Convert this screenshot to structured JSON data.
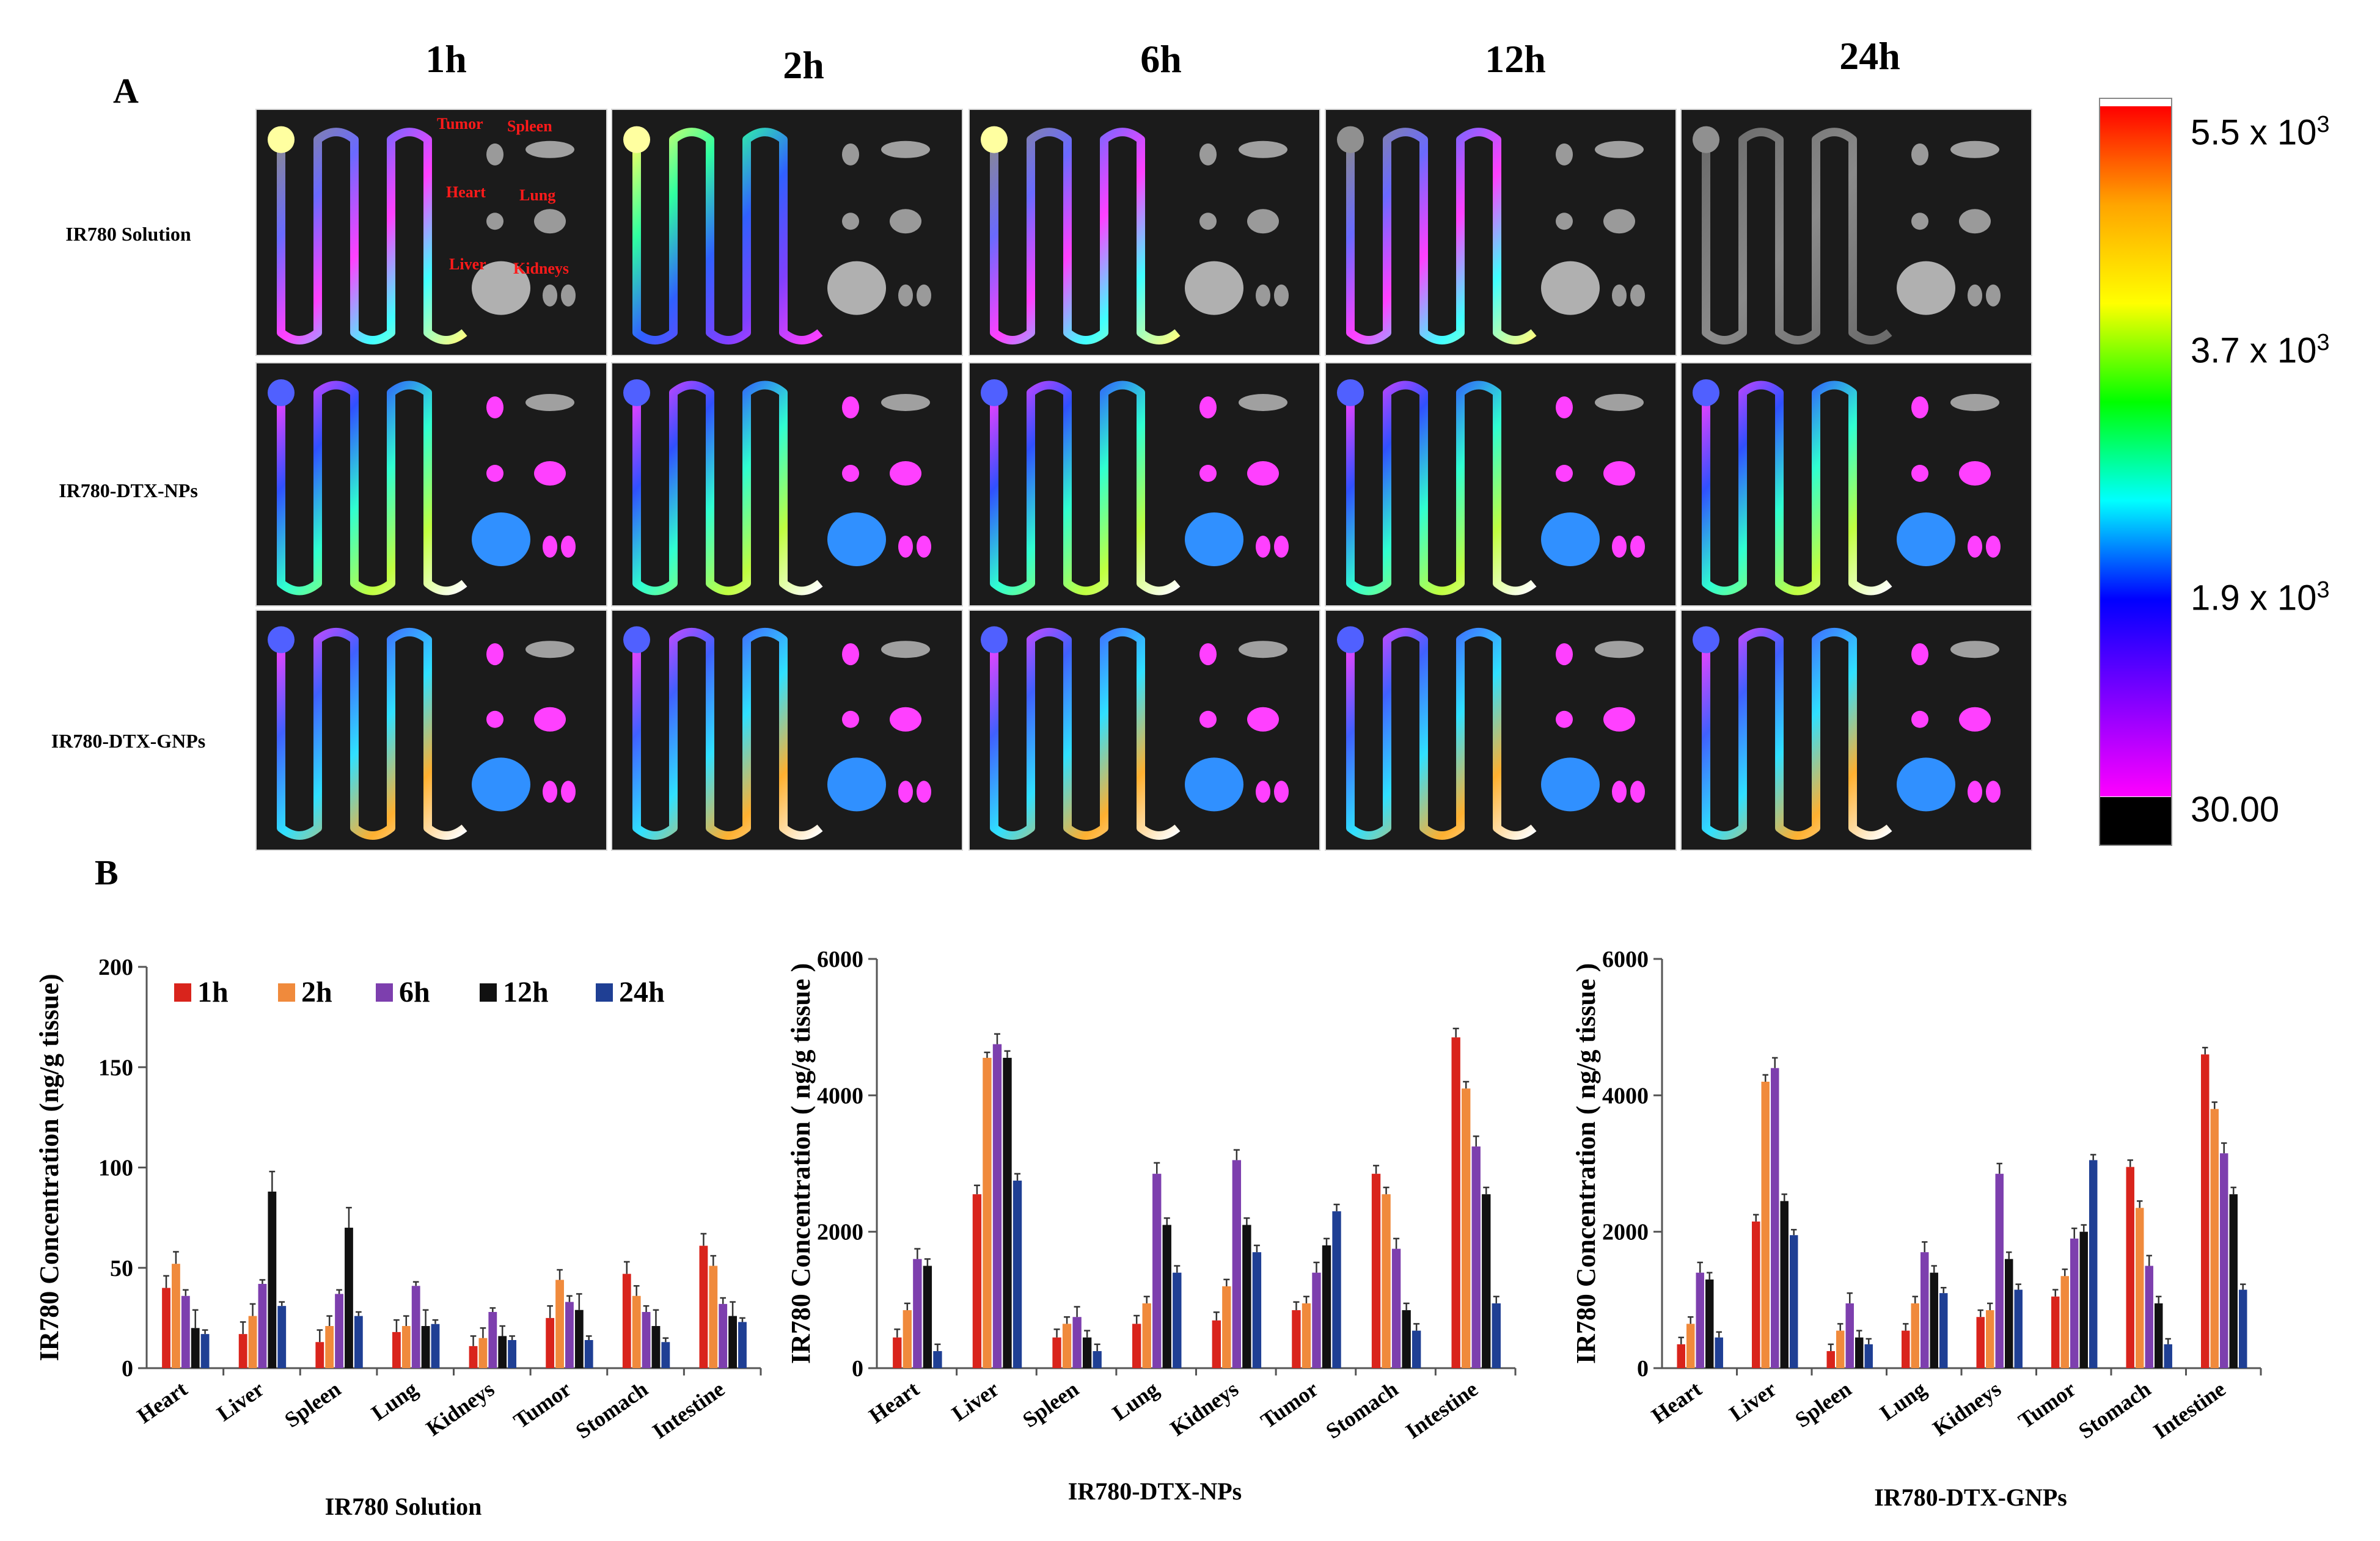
{
  "panel_a_label": "A",
  "panel_b_label": "B",
  "time_points": [
    "1h",
    "2h",
    "6h",
    "12h",
    "24h"
  ],
  "row_labels": [
    "IR780  Solution",
    "IR780-DTX-NPs",
    "IR780-DTX-GNPs"
  ],
  "organ_labels": {
    "tumor": "Tumor",
    "spleen": "Spleen",
    "heart": "Heart",
    "lung": "Lung",
    "liver": "Liver",
    "kidneys": "Kidneys"
  },
  "colorbar": {
    "labels": [
      "5.5 x 10",
      "3.7 x 10",
      "1.9 x 10"
    ],
    "exponent": "3",
    "min_label": "30.00",
    "colors": [
      "#ff0000",
      "#ffa500",
      "#ffff00",
      "#00ff00",
      "#00ffff",
      "#0000ff",
      "#8000ff",
      "#ff00ff"
    ]
  },
  "series_colors": {
    "1h": "#d9241c",
    "2h": "#f08a3c",
    "6h": "#7d3fae",
    "12h": "#111111",
    "24h": "#1f3f94"
  },
  "chart_data": [
    {
      "type": "bar",
      "title": "IR780  Solution",
      "xlabel": "",
      "ylabel": "IR780 Concentration (ng/g tissue)",
      "ylim": [
        0,
        200
      ],
      "yticks": [
        0,
        50,
        100,
        150,
        200
      ],
      "legend": "top-left",
      "categories": [
        "Heart",
        "Liver",
        "Spleen",
        "Lung",
        "Kidneys",
        "Tumor",
        "Stomach",
        "Intestine"
      ],
      "series": [
        {
          "name": "1h",
          "values": [
            40,
            17,
            13,
            18,
            11,
            25,
            47,
            61
          ],
          "errors": [
            6,
            6,
            6,
            6,
            5,
            6,
            6,
            6
          ]
        },
        {
          "name": "2h",
          "values": [
            52,
            26,
            21,
            21,
            15,
            44,
            36,
            51
          ],
          "errors": [
            6,
            6,
            5,
            5,
            5,
            5,
            5,
            5
          ]
        },
        {
          "name": "6h",
          "values": [
            36,
            42,
            37,
            41,
            28,
            33,
            28,
            32
          ],
          "errors": [
            3,
            2,
            2,
            2,
            2,
            3,
            3,
            3
          ]
        },
        {
          "name": "12h",
          "values": [
            20,
            88,
            70,
            21,
            16,
            29,
            21,
            26
          ],
          "errors": [
            9,
            10,
            10,
            8,
            5,
            8,
            8,
            7
          ]
        },
        {
          "name": "24h",
          "values": [
            17,
            31,
            26,
            22,
            14,
            14,
            13,
            23
          ],
          "errors": [
            2,
            2,
            2,
            2,
            2,
            2,
            2,
            2
          ]
        }
      ]
    },
    {
      "type": "bar",
      "title": "IR780-DTX-NPs",
      "xlabel": "",
      "ylabel": "IR780 Concentration ( ng/g tissue )",
      "ylim": [
        0,
        6000
      ],
      "yticks": [
        0,
        2000,
        4000,
        6000
      ],
      "categories": [
        "Heart",
        "Liver",
        "Spleen",
        "Lung",
        "Kidneys",
        "Tumor",
        "Stomach",
        "Intestine"
      ],
      "series": [
        {
          "name": "1h",
          "values": [
            450,
            2550,
            450,
            650,
            700,
            850,
            2850,
            4850
          ],
          "errors": [
            120,
            130,
            120,
            120,
            120,
            120,
            120,
            130
          ]
        },
        {
          "name": "2h",
          "values": [
            850,
            4550,
            650,
            950,
            1200,
            950,
            2550,
            4100
          ],
          "errors": [
            100,
            80,
            100,
            100,
            100,
            100,
            100,
            100
          ]
        },
        {
          "name": "6h",
          "values": [
            1600,
            4750,
            750,
            2850,
            3050,
            1400,
            1750,
            3250
          ],
          "errors": [
            150,
            150,
            150,
            160,
            150,
            150,
            150,
            150
          ]
        },
        {
          "name": "12h",
          "values": [
            1500,
            4550,
            450,
            2100,
            2100,
            1800,
            850,
            2550
          ],
          "errors": [
            100,
            100,
            100,
            100,
            100,
            100,
            100,
            100
          ]
        },
        {
          "name": "24h",
          "values": [
            250,
            2750,
            250,
            1400,
            1700,
            2300,
            550,
            950
          ],
          "errors": [
            100,
            100,
            100,
            100,
            100,
            100,
            100,
            100
          ]
        }
      ]
    },
    {
      "type": "bar",
      "title": "IR780-DTX-GNPs",
      "xlabel": "",
      "ylabel": "IR780 Concentration ( ng/g tissue )",
      "ylim": [
        0,
        6000
      ],
      "yticks": [
        0,
        2000,
        4000,
        6000
      ],
      "categories": [
        "Heart",
        "Liver",
        "Spleen",
        "Lung",
        "Kidneys",
        "Tumor",
        "Stomach",
        "Intestine"
      ],
      "series": [
        {
          "name": "1h",
          "values": [
            350,
            2150,
            250,
            550,
            750,
            1050,
            2950,
            4600
          ],
          "errors": [
            100,
            100,
            100,
            100,
            100,
            100,
            100,
            100
          ]
        },
        {
          "name": "2h",
          "values": [
            650,
            4200,
            550,
            950,
            850,
            1350,
            2350,
            3800
          ],
          "errors": [
            100,
            100,
            100,
            100,
            100,
            100,
            100,
            100
          ]
        },
        {
          "name": "6h",
          "values": [
            1400,
            4400,
            950,
            1700,
            2850,
            1900,
            1500,
            3150
          ],
          "errors": [
            150,
            150,
            150,
            150,
            150,
            150,
            150,
            150
          ]
        },
        {
          "name": "12h",
          "values": [
            1300,
            2450,
            450,
            1400,
            1600,
            2000,
            950,
            2550
          ],
          "errors": [
            100,
            100,
            100,
            100,
            100,
            100,
            100,
            100
          ]
        },
        {
          "name": "24h",
          "values": [
            450,
            1950,
            350,
            1100,
            1150,
            3050,
            350,
            1150
          ],
          "errors": [
            80,
            80,
            80,
            80,
            80,
            80,
            80,
            80
          ]
        }
      ]
    }
  ]
}
